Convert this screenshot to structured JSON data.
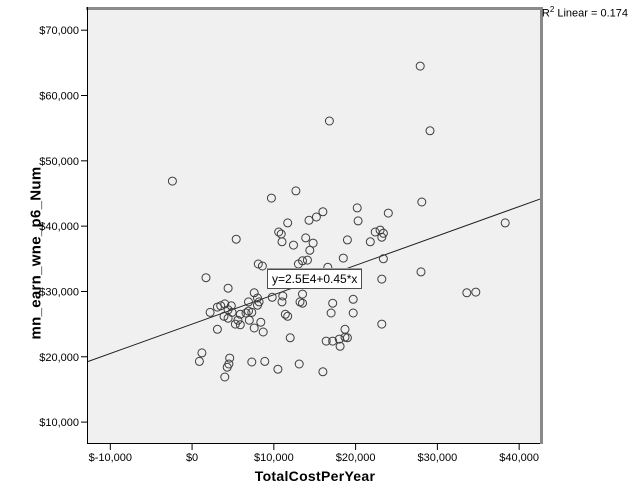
{
  "annotation": {
    "r": "R",
    "sup": "2",
    "rest": " Linear = 0.174"
  },
  "chart_data": {
    "type": "scatter",
    "title": "",
    "xlabel": "TotalCostPerYear",
    "ylabel": "mn_earn_wne_p6_Num",
    "xlim": [
      -12850,
      42550
    ],
    "ylim": [
      6800,
      73550
    ],
    "grid": false,
    "legend": "none",
    "x_ticks": {
      "values": [
        -10000,
        0,
        10000,
        20000,
        30000,
        40000
      ],
      "labels": [
        "$-10,000",
        "$0",
        "$10,000",
        "$20,000",
        "$30,000",
        "$40,000"
      ]
    },
    "y_ticks": {
      "values": [
        10000,
        20000,
        30000,
        40000,
        50000,
        60000,
        70000
      ],
      "labels": [
        "$10,000",
        "$20,000",
        "$30,000",
        "$40,000",
        "$50,000",
        "$60,000",
        "$70,000"
      ]
    },
    "regression": {
      "slope": 0.45,
      "intercept": 25000,
      "label": "y=2.5E4+0.45*x",
      "r_squared": 0.174
    },
    "marker": {
      "radius": 4,
      "stroke": "#3d3d3d"
    },
    "colors": {
      "plot_bg": "#f0f0f0",
      "frame_shadow": "#8a8a8a",
      "axis": "#000000",
      "line": "#1f1f1f"
    },
    "points": [
      [
        27900,
        64500
      ],
      [
        16800,
        56100
      ],
      [
        29100,
        54600
      ],
      [
        -2400,
        46900
      ],
      [
        9700,
        44300
      ],
      [
        12700,
        45400
      ],
      [
        11700,
        40500
      ],
      [
        14300,
        40900
      ],
      [
        10600,
        39100
      ],
      [
        10900,
        38800
      ],
      [
        11000,
        37600
      ],
      [
        12400,
        37100
      ],
      [
        13900,
        38200
      ],
      [
        5400,
        38000
      ],
      [
        14400,
        36300
      ],
      [
        8100,
        34200
      ],
      [
        8600,
        33900
      ],
      [
        13000,
        34200
      ],
      [
        13500,
        34700
      ],
      [
        14100,
        34800
      ],
      [
        1700,
        32100
      ],
      [
        4400,
        30500
      ],
      [
        7600,
        29800
      ],
      [
        8000,
        29000
      ],
      [
        11100,
        29300
      ],
      [
        13500,
        29600
      ],
      [
        13500,
        28200
      ],
      [
        6900,
        28400
      ],
      [
        9800,
        29100
      ],
      [
        12000,
        22900
      ],
      [
        2200,
        26800
      ],
      [
        3100,
        27600
      ],
      [
        3500,
        27800
      ],
      [
        4000,
        28100
      ],
      [
        4800,
        27800
      ],
      [
        4400,
        27200
      ],
      [
        4900,
        26800
      ],
      [
        3900,
        26200
      ],
      [
        4400,
        25900
      ],
      [
        5600,
        25600
      ],
      [
        5900,
        26500
      ],
      [
        6600,
        26700
      ],
      [
        6900,
        27000
      ],
      [
        7300,
        26800
      ],
      [
        8000,
        27900
      ],
      [
        8200,
        28400
      ],
      [
        5300,
        25000
      ],
      [
        5900,
        24900
      ],
      [
        7000,
        25600
      ],
      [
        8400,
        25300
      ],
      [
        7600,
        24400
      ],
      [
        8700,
        23800
      ],
      [
        11400,
        26500
      ],
      [
        11700,
        26200
      ],
      [
        11000,
        28400
      ],
      [
        13200,
        28400
      ],
      [
        3100,
        24200
      ],
      [
        1200,
        20600
      ],
      [
        900,
        19300
      ],
      [
        4600,
        19800
      ],
      [
        4500,
        18900
      ],
      [
        4300,
        18400
      ],
      [
        4000,
        16900
      ],
      [
        7300,
        19200
      ],
      [
        8900,
        19300
      ],
      [
        10500,
        18100
      ],
      [
        13100,
        18900
      ],
      [
        28100,
        43700
      ],
      [
        20200,
        42800
      ],
      [
        16000,
        42200
      ],
      [
        15200,
        41400
      ],
      [
        24000,
        42000
      ],
      [
        20300,
        40800
      ],
      [
        38300,
        40500
      ],
      [
        22400,
        39100
      ],
      [
        23000,
        39400
      ],
      [
        23400,
        38900
      ],
      [
        23200,
        38300
      ],
      [
        14800,
        37400
      ],
      [
        19000,
        37900
      ],
      [
        21800,
        37600
      ],
      [
        18500,
        35100
      ],
      [
        16600,
        33700
      ],
      [
        23400,
        35000
      ],
      [
        28000,
        33000
      ],
      [
        23200,
        31900
      ],
      [
        33600,
        29800
      ],
      [
        34700,
        29900
      ],
      [
        17200,
        28200
      ],
      [
        19700,
        28800
      ],
      [
        17000,
        26700
      ],
      [
        19700,
        26700
      ],
      [
        23200,
        25000
      ],
      [
        18700,
        24200
      ],
      [
        16400,
        22400
      ],
      [
        17200,
        22400
      ],
      [
        18000,
        22700
      ],
      [
        18700,
        23000
      ],
      [
        19000,
        22900
      ],
      [
        18100,
        21600
      ],
      [
        16000,
        17700
      ]
    ]
  }
}
